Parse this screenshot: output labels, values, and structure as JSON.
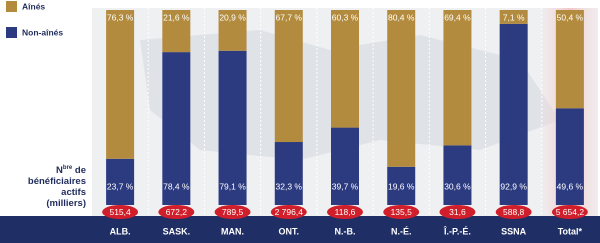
{
  "chart_data": {
    "type": "stacked_bar_100",
    "categories": [
      "ALB.",
      "SASK.",
      "MAN.",
      "ONT.",
      "N.-B.",
      "N.-É.",
      "Î.-P.-É.",
      "SSNA",
      "Total*"
    ],
    "series": [
      {
        "name": "Non-aînés",
        "color": "#2c3a80",
        "values": [
          23.7,
          78.4,
          79.1,
          32.3,
          39.7,
          19.6,
          30.6,
          92.9,
          49.6
        ],
        "value_labels": [
          "23,7 %",
          "78,4 %",
          "79,1 %",
          "32,3 %",
          "39,7 %",
          "19,6 %",
          "30,6 %",
          "92,9 %",
          "49,6 %"
        ]
      },
      {
        "name": "Aînés",
        "color": "#b38b3e",
        "values": [
          76.3,
          21.6,
          20.9,
          67.7,
          60.3,
          80.4,
          69.4,
          7.1,
          50.4
        ],
        "value_labels": [
          "76,3 %",
          "21,6 %",
          "20,9 %",
          "67,7 %",
          "60,3 %",
          "80,4 %",
          "69,4 %",
          "7,1 %",
          "50,4 %"
        ]
      }
    ],
    "count_label": [
      [
        "N",
        "bre",
        " de"
      ],
      "bénéficiaires",
      "actifs",
      "(milliers)"
    ],
    "counts": {
      "color": "#d01f2a",
      "values": [
        515.4,
        672.2,
        789.5,
        2796.4,
        118.6,
        135.5,
        31.6,
        588.8,
        5654.2
      ],
      "value_labels": [
        "515,4",
        "672,2",
        "789,5",
        "2 796,4",
        "118,6",
        "135,5",
        "31,6",
        "588,8",
        "5 654,2"
      ]
    }
  }
}
